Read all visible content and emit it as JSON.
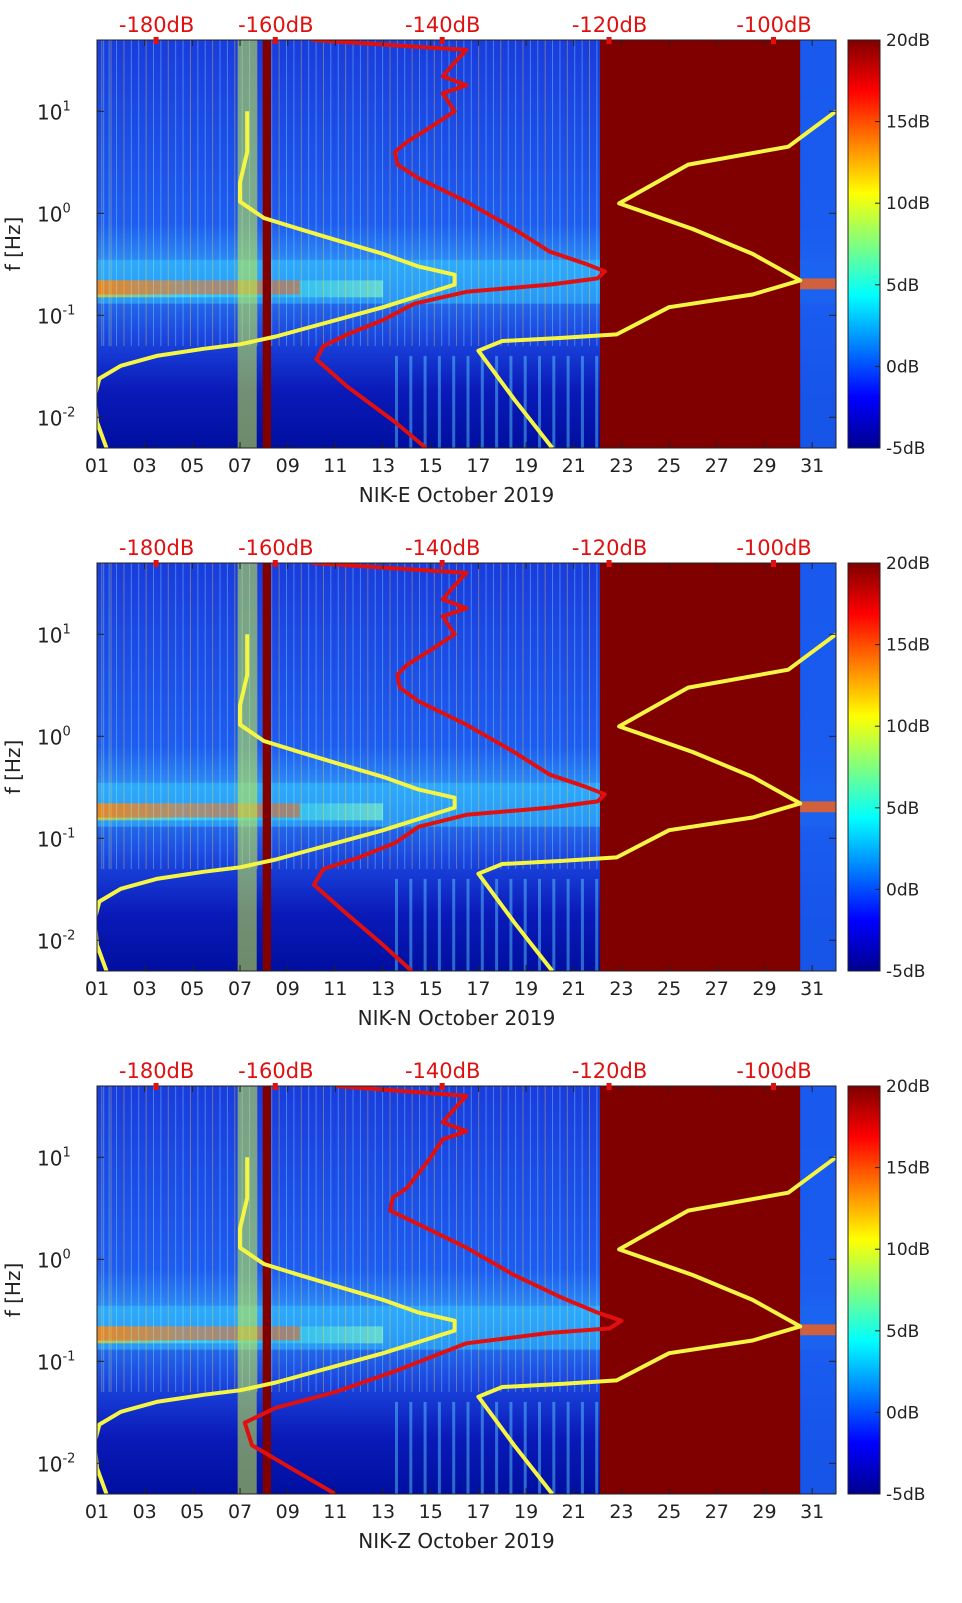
{
  "chart_data": [
    {
      "type": "heatmap",
      "station": "NIK-E",
      "xlabel": "NIK-E October 2019",
      "ylabel": "f [Hz]",
      "x_ticks": [
        "01",
        "03",
        "05",
        "07",
        "09",
        "11",
        "13",
        "15",
        "17",
        "19",
        "21",
        "23",
        "25",
        "27",
        "29",
        "31"
      ],
      "x_range": [
        1,
        32
      ],
      "y_range": [
        0.005,
        50
      ],
      "y_ticks": [
        {
          "label": "10",
          "exp": "-2",
          "value": 0.01
        },
        {
          "label": "10",
          "exp": "-1",
          "value": 0.1
        },
        {
          "label": "10",
          "exp": "0",
          "value": 1
        },
        {
          "label": "10",
          "exp": "1",
          "value": 10
        }
      ],
      "top_axis_ticks": [
        {
          "label": "-180dB",
          "x_day": 3.5
        },
        {
          "label": "-160dB",
          "x_day": 8.5
        },
        {
          "label": "-140dB",
          "x_day": 15.5
        },
        {
          "label": "-120dB",
          "x_day": 22.5
        },
        {
          "label": "-100dB",
          "x_day": 29.4
        }
      ],
      "colorbar": {
        "ticks": [
          "20dB",
          "15dB",
          "10dB",
          "5dB",
          "0dB",
          "-5dB"
        ],
        "range_db": [
          -5,
          20
        ]
      },
      "data_gap": {
        "from_day": 22.1,
        "to_day": 30.5,
        "level": "20dB+"
      },
      "series": [
        {
          "name": "Low noise model (NLNM)",
          "color": "#f5f544",
          "points": [
            [
              1.4,
              0.005
            ],
            [
              1.0,
              0.009
            ],
            [
              0.9,
              0.016
            ],
            [
              1.1,
              0.024
            ],
            [
              2.0,
              0.032
            ],
            [
              3.5,
              0.04
            ],
            [
              5.5,
              0.047
            ],
            [
              7.0,
              0.052
            ],
            [
              8.5,
              0.062
            ],
            [
              9.8,
              0.075
            ],
            [
              13,
              0.12
            ],
            [
              16.0,
              0.2
            ],
            [
              16.0,
              0.25
            ],
            [
              14.5,
              0.3
            ],
            [
              13.0,
              0.4
            ],
            [
              11,
              0.55
            ],
            [
              9.5,
              0.7
            ],
            [
              8.0,
              0.9
            ],
            [
              7.0,
              1.3
            ],
            [
              7.0,
              2
            ],
            [
              7.3,
              4
            ],
            [
              7.3,
              10
            ]
          ]
        },
        {
          "name": "High noise model (NHNM)",
          "color": "#f5f544",
          "points": [
            [
              20.1,
              0.005
            ],
            [
              18.5,
              0.015
            ],
            [
              17.0,
              0.045
            ],
            [
              18.0,
              0.056
            ],
            [
              20.5,
              0.06
            ],
            [
              22.8,
              0.065
            ],
            [
              25.0,
              0.12
            ],
            [
              28.5,
              0.16
            ],
            [
              30.5,
              0.22
            ],
            [
              28.5,
              0.4
            ],
            [
              26,
              0.7
            ],
            [
              22.9,
              1.25
            ],
            [
              25.8,
              3
            ],
            [
              30.0,
              4.5
            ],
            [
              32,
              10
            ]
          ]
        },
        {
          "name": "NIK-E median PSD",
          "color": "#e01010",
          "points": [
            [
              14.8,
              0.005
            ],
            [
              13.5,
              0.009
            ],
            [
              11.5,
              0.02
            ],
            [
              10.2,
              0.037
            ],
            [
              10.5,
              0.05
            ],
            [
              11.5,
              0.065
            ],
            [
              13,
              0.09
            ],
            [
              14.3,
              0.13
            ],
            [
              16.5,
              0.17
            ],
            [
              20.0,
              0.2
            ],
            [
              22.0,
              0.23
            ],
            [
              22.3,
              0.27
            ],
            [
              21.5,
              0.32
            ],
            [
              20,
              0.42
            ],
            [
              18.5,
              0.7
            ],
            [
              16.5,
              1.3
            ],
            [
              14.5,
              2.2
            ],
            [
              13.6,
              3
            ],
            [
              13.5,
              4
            ],
            [
              14.0,
              5
            ],
            [
              15.0,
              7
            ],
            [
              16,
              10
            ],
            [
              15.5,
              15
            ],
            [
              16.5,
              18
            ],
            [
              15.5,
              22
            ],
            [
              16,
              30
            ],
            [
              16.5,
              40
            ],
            [
              10,
              50
            ]
          ]
        }
      ]
    },
    {
      "type": "heatmap",
      "station": "NIK-N",
      "xlabel": "NIK-N October 2019",
      "ylabel": "f [Hz]",
      "x_ticks": [
        "01",
        "03",
        "05",
        "07",
        "09",
        "11",
        "13",
        "15",
        "17",
        "19",
        "21",
        "23",
        "25",
        "27",
        "29",
        "31"
      ],
      "x_range": [
        1,
        32
      ],
      "y_range": [
        0.005,
        50
      ],
      "y_ticks": [
        {
          "label": "10",
          "exp": "-2",
          "value": 0.01
        },
        {
          "label": "10",
          "exp": "-1",
          "value": 0.1
        },
        {
          "label": "10",
          "exp": "0",
          "value": 1
        },
        {
          "label": "10",
          "exp": "1",
          "value": 10
        }
      ],
      "top_axis_ticks": [
        {
          "label": "-180dB",
          "x_day": 3.5
        },
        {
          "label": "-160dB",
          "x_day": 8.5
        },
        {
          "label": "-140dB",
          "x_day": 15.5
        },
        {
          "label": "-120dB",
          "x_day": 22.5
        },
        {
          "label": "-100dB",
          "x_day": 29.4
        }
      ],
      "colorbar": {
        "ticks": [
          "20dB",
          "15dB",
          "10dB",
          "5dB",
          "0dB",
          "-5dB"
        ],
        "range_db": [
          -5,
          20
        ]
      },
      "data_gap": {
        "from_day": 22.1,
        "to_day": 30.5,
        "level": "20dB+"
      },
      "series": [
        {
          "name": "Low noise model (NLNM)",
          "color": "#f5f544",
          "points": [
            [
              1.4,
              0.005
            ],
            [
              1.0,
              0.009
            ],
            [
              0.9,
              0.016
            ],
            [
              1.1,
              0.024
            ],
            [
              2.0,
              0.032
            ],
            [
              3.5,
              0.04
            ],
            [
              5.5,
              0.047
            ],
            [
              7.0,
              0.052
            ],
            [
              8.5,
              0.062
            ],
            [
              9.8,
              0.075
            ],
            [
              13,
              0.12
            ],
            [
              16.0,
              0.2
            ],
            [
              16.0,
              0.25
            ],
            [
              14.5,
              0.3
            ],
            [
              13.0,
              0.4
            ],
            [
              11,
              0.55
            ],
            [
              9.5,
              0.7
            ],
            [
              8.0,
              0.9
            ],
            [
              7.0,
              1.3
            ],
            [
              7.0,
              2
            ],
            [
              7.3,
              4
            ],
            [
              7.3,
              10
            ]
          ]
        },
        {
          "name": "High noise model (NHNM)",
          "color": "#f5f544",
          "points": [
            [
              20.1,
              0.005
            ],
            [
              18.5,
              0.015
            ],
            [
              17.0,
              0.045
            ],
            [
              18.0,
              0.056
            ],
            [
              20.5,
              0.06
            ],
            [
              22.8,
              0.065
            ],
            [
              25.0,
              0.12
            ],
            [
              28.5,
              0.16
            ],
            [
              30.5,
              0.22
            ],
            [
              28.5,
              0.4
            ],
            [
              26,
              0.7
            ],
            [
              22.9,
              1.25
            ],
            [
              25.8,
              3
            ],
            [
              30.0,
              4.5
            ],
            [
              32,
              10
            ]
          ]
        },
        {
          "name": "NIK-N median PSD",
          "color": "#e01010",
          "points": [
            [
              14.2,
              0.005
            ],
            [
              13.0,
              0.009
            ],
            [
              11.5,
              0.018
            ],
            [
              10.1,
              0.035
            ],
            [
              10.5,
              0.05
            ],
            [
              12,
              0.065
            ],
            [
              13.5,
              0.09
            ],
            [
              14.5,
              0.13
            ],
            [
              16.5,
              0.17
            ],
            [
              20.0,
              0.2
            ],
            [
              22.0,
              0.23
            ],
            [
              22.3,
              0.27
            ],
            [
              21.5,
              0.32
            ],
            [
              20,
              0.42
            ],
            [
              18.5,
              0.7
            ],
            [
              16.5,
              1.3
            ],
            [
              14.5,
              2.2
            ],
            [
              13.7,
              3
            ],
            [
              13.6,
              4
            ],
            [
              14.0,
              5
            ],
            [
              15.0,
              7
            ],
            [
              16,
              10
            ],
            [
              15.5,
              15
            ],
            [
              16.5,
              18
            ],
            [
              15.5,
              22
            ],
            [
              16,
              30
            ],
            [
              16.5,
              40
            ],
            [
              10,
              50
            ]
          ]
        }
      ]
    },
    {
      "type": "heatmap",
      "station": "NIK-Z",
      "xlabel": "NIK-Z October 2019",
      "ylabel": "f [Hz]",
      "x_ticks": [
        "01",
        "03",
        "05",
        "07",
        "09",
        "11",
        "13",
        "15",
        "17",
        "19",
        "21",
        "23",
        "25",
        "27",
        "29",
        "31"
      ],
      "x_range": [
        1,
        32
      ],
      "y_range": [
        0.005,
        50
      ],
      "y_ticks": [
        {
          "label": "10",
          "exp": "-2",
          "value": 0.01
        },
        {
          "label": "10",
          "exp": "-1",
          "value": 0.1
        },
        {
          "label": "10",
          "exp": "0",
          "value": 1
        },
        {
          "label": "10",
          "exp": "1",
          "value": 10
        }
      ],
      "top_axis_ticks": [
        {
          "label": "-180dB",
          "x_day": 3.5
        },
        {
          "label": "-160dB",
          "x_day": 8.5
        },
        {
          "label": "-140dB",
          "x_day": 15.5
        },
        {
          "label": "-120dB",
          "x_day": 22.5
        },
        {
          "label": "-100dB",
          "x_day": 29.4
        }
      ],
      "colorbar": {
        "ticks": [
          "20dB",
          "15dB",
          "10dB",
          "5dB",
          "0dB",
          "-5dB"
        ],
        "range_db": [
          -5,
          20
        ]
      },
      "data_gap": {
        "from_day": 22.1,
        "to_day": 30.5,
        "level": "20dB+"
      },
      "series": [
        {
          "name": "Low noise model (NLNM)",
          "color": "#f5f544",
          "points": [
            [
              1.4,
              0.005
            ],
            [
              1.0,
              0.009
            ],
            [
              0.9,
              0.016
            ],
            [
              1.1,
              0.024
            ],
            [
              2.0,
              0.032
            ],
            [
              3.5,
              0.04
            ],
            [
              5.5,
              0.047
            ],
            [
              7.0,
              0.052
            ],
            [
              8.5,
              0.062
            ],
            [
              9.8,
              0.075
            ],
            [
              13,
              0.12
            ],
            [
              16.0,
              0.2
            ],
            [
              16.0,
              0.25
            ],
            [
              14.5,
              0.3
            ],
            [
              13.0,
              0.4
            ],
            [
              11,
              0.55
            ],
            [
              9.5,
              0.7
            ],
            [
              8.0,
              0.9
            ],
            [
              7.0,
              1.3
            ],
            [
              7.0,
              2
            ],
            [
              7.3,
              4
            ],
            [
              7.3,
              10
            ]
          ]
        },
        {
          "name": "High noise model (NHNM)",
          "color": "#f5f544",
          "points": [
            [
              20.1,
              0.005
            ],
            [
              18.5,
              0.015
            ],
            [
              17.0,
              0.045
            ],
            [
              18.0,
              0.056
            ],
            [
              20.5,
              0.06
            ],
            [
              22.8,
              0.065
            ],
            [
              25.0,
              0.12
            ],
            [
              28.5,
              0.16
            ],
            [
              30.5,
              0.22
            ],
            [
              28.5,
              0.4
            ],
            [
              26,
              0.7
            ],
            [
              22.9,
              1.25
            ],
            [
              25.8,
              3
            ],
            [
              30.0,
              4.5
            ],
            [
              32,
              10
            ]
          ]
        },
        {
          "name": "NIK-Z median PSD",
          "color": "#e01010",
          "points": [
            [
              11.0,
              0.005
            ],
            [
              9.5,
              0.008
            ],
            [
              7.5,
              0.015
            ],
            [
              7.2,
              0.025
            ],
            [
              8.5,
              0.035
            ],
            [
              11,
              0.05
            ],
            [
              13.5,
              0.08
            ],
            [
              16.5,
              0.15
            ],
            [
              20.0,
              0.19
            ],
            [
              22.5,
              0.21
            ],
            [
              23.0,
              0.25
            ],
            [
              22.0,
              0.3
            ],
            [
              20.5,
              0.42
            ],
            [
              18.5,
              0.7
            ],
            [
              16.5,
              1.3
            ],
            [
              14.5,
              2.2
            ],
            [
              13.3,
              3
            ],
            [
              13.4,
              4
            ],
            [
              14.0,
              5
            ],
            [
              14.5,
              7
            ],
            [
              15,
              10
            ],
            [
              15.5,
              15
            ],
            [
              16.5,
              18
            ],
            [
              15.5,
              22
            ],
            [
              16,
              30
            ],
            [
              16.5,
              40
            ],
            [
              11,
              50
            ]
          ]
        }
      ]
    }
  ]
}
